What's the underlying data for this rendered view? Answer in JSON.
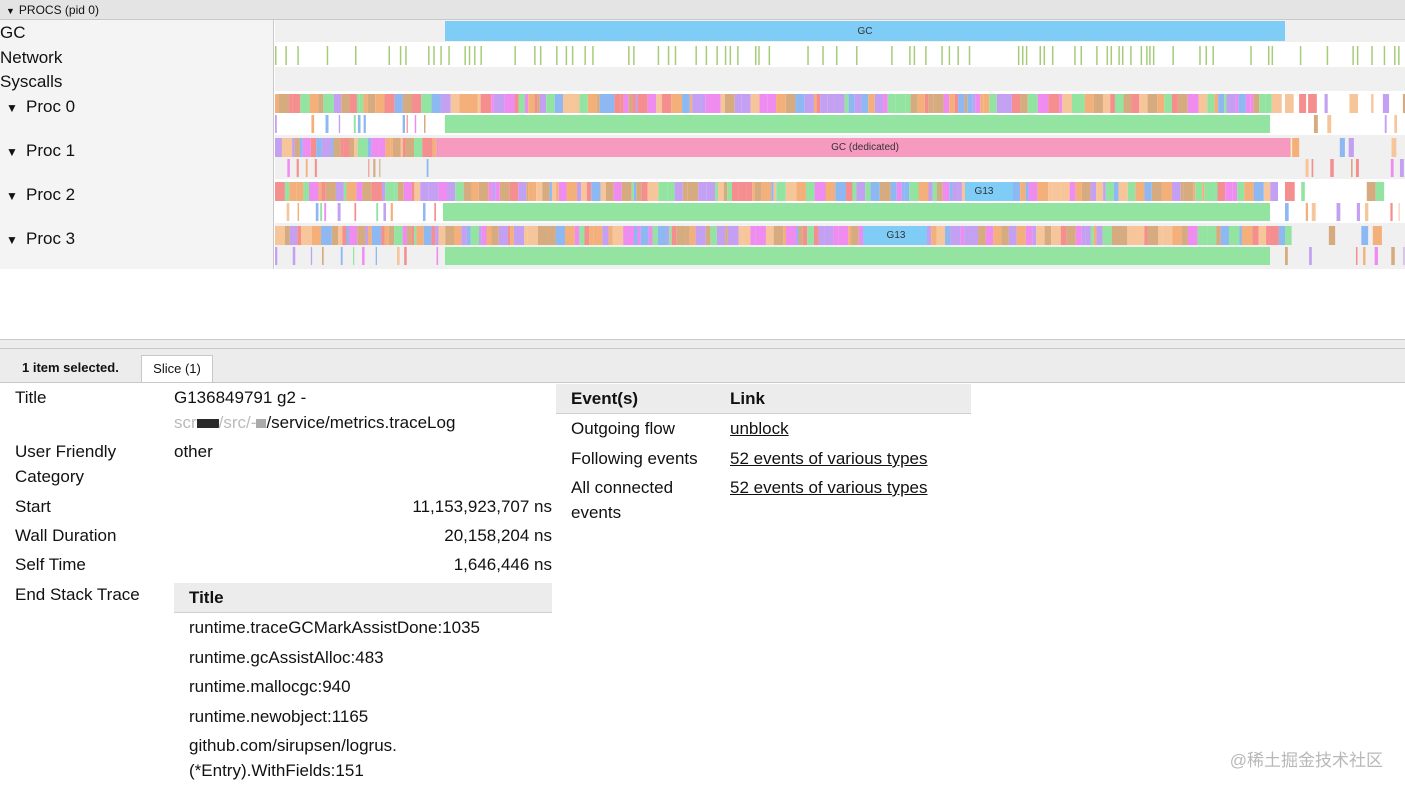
{
  "procs_header": {
    "title": "PROCS (pid 0)"
  },
  "rows": {
    "gc": "GC",
    "network": "Network",
    "syscalls": "Syscalls",
    "proc0": "Proc 0",
    "proc1": "Proc 1",
    "proc2": "Proc 2",
    "proc3": "Proc 3"
  },
  "timeline": {
    "gc_slice_label": "GC",
    "gc_dedicated_label": "GC (dedicated)",
    "proc2_slice_label": "G13",
    "proc3_slice_label": "G13"
  },
  "selection": {
    "count_text": "1 item selected.",
    "tab_label": "Slice (1)"
  },
  "details": {
    "title_label": "Title",
    "title_line1": "G136849791 g2 -",
    "title_line2_prefix": "scr",
    "title_line2_mid": "/src/-",
    "title_line2_suffix": "/service/metrics.traceLog",
    "category_label_1": "User Friendly",
    "category_label_2": "Category",
    "category_value": "other",
    "start_label": "Start",
    "start_value": "11,153,923,707 ns",
    "wall_label": "Wall Duration",
    "wall_value": "20,158,204 ns",
    "self_label": "Self Time",
    "self_value": "1,646,446 ns",
    "stack_label": "End Stack Trace"
  },
  "stack_table": {
    "header": "Title",
    "rows": [
      "runtime.traceGCMarkAssistDone:1035",
      "runtime.gcAssistAlloc:483",
      "runtime.mallocgc:940",
      "runtime.newobject:1165",
      "github.com/sirupsen/logrus.",
      "(*Entry).WithFields:151"
    ]
  },
  "events_table": {
    "col_events": "Event(s)",
    "col_link": "Link",
    "rows": [
      {
        "event": "Outgoing flow",
        "link": "unblock"
      },
      {
        "event": "Following events",
        "link": "52 events of various types"
      },
      {
        "event": "All connected",
        "event2": "events",
        "link": "52 events of various types"
      }
    ]
  },
  "watermark": "@稀土掘金技术社区",
  "colors": {
    "gc_blue": "#7fcdf7",
    "gc_dedicated": "#f79ac0",
    "assist_green": "#93e3a1",
    "network_green": "#a6cc7a",
    "stripe_red": "#f58e8e",
    "stripe_orange": "#f4b07a",
    "stripe_magenta": "#ee8cf0",
    "stripe_blue": "#8db8f2",
    "stripe_tan": "#d6ab80"
  }
}
